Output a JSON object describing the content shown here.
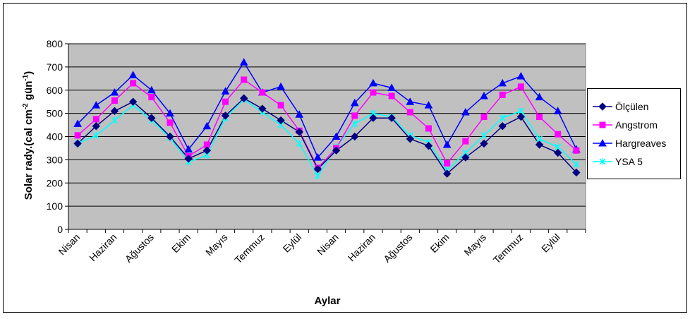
{
  "chart_data": {
    "type": "line",
    "title": "",
    "xlabel": "Aylar",
    "ylabel": "Solar rady.(cal cm",
    "ylabel_sup1": "-2",
    "ylabel_mid": " gün",
    "ylabel_sup2": "-1",
    "ylabel_end": ")",
    "ylim": [
      0,
      800
    ],
    "yticks": [
      "0",
      "100",
      "200",
      "300",
      "400",
      "500",
      "600",
      "700",
      "800"
    ],
    "xtick_labels": [
      "Nisan",
      "Haziran",
      "Ağustos",
      "Ekim",
      "Mayıs",
      "Temmuz",
      "Eylül",
      "Nisan",
      "Haziran",
      "Ağustos",
      "Ekim",
      "Mayıs",
      "Temmuz",
      "Eylül"
    ],
    "grid": "horizontal",
    "plot_background": "#c0c0c0",
    "legend_position": "right",
    "series": [
      {
        "name": "Ölçülen",
        "color": "#000080",
        "marker": "diamond",
        "values": [
          370,
          445,
          510,
          550,
          480,
          400,
          305,
          340,
          490,
          565,
          520,
          470,
          420,
          260,
          340,
          400,
          480,
          480,
          390,
          360,
          240,
          310,
          370,
          445,
          485,
          365,
          330,
          245
        ]
      },
      {
        "name": "Angstrom",
        "color": "#ff00ff",
        "marker": "square",
        "values": [
          405,
          475,
          555,
          630,
          570,
          460,
          315,
          365,
          550,
          645,
          590,
          535,
          425,
          265,
          350,
          490,
          590,
          575,
          505,
          435,
          285,
          380,
          485,
          580,
          615,
          485,
          410,
          340
        ]
      },
      {
        "name": "Hargreaves",
        "color": "#0000ff",
        "marker": "triangle",
        "values": [
          455,
          535,
          590,
          665,
          600,
          500,
          345,
          445,
          595,
          720,
          590,
          615,
          495,
          310,
          400,
          545,
          630,
          610,
          550,
          535,
          365,
          505,
          575,
          630,
          660,
          570,
          510,
          345
        ]
      },
      {
        "name": "YSA 5",
        "color": "#00ffff",
        "marker": "x",
        "values": [
          370,
          405,
          470,
          535,
          470,
          395,
          290,
          320,
          480,
          560,
          505,
          450,
          370,
          230,
          355,
          455,
          500,
          485,
          405,
          375,
          255,
          330,
          405,
          480,
          510,
          390,
          355,
          280
        ]
      }
    ]
  }
}
